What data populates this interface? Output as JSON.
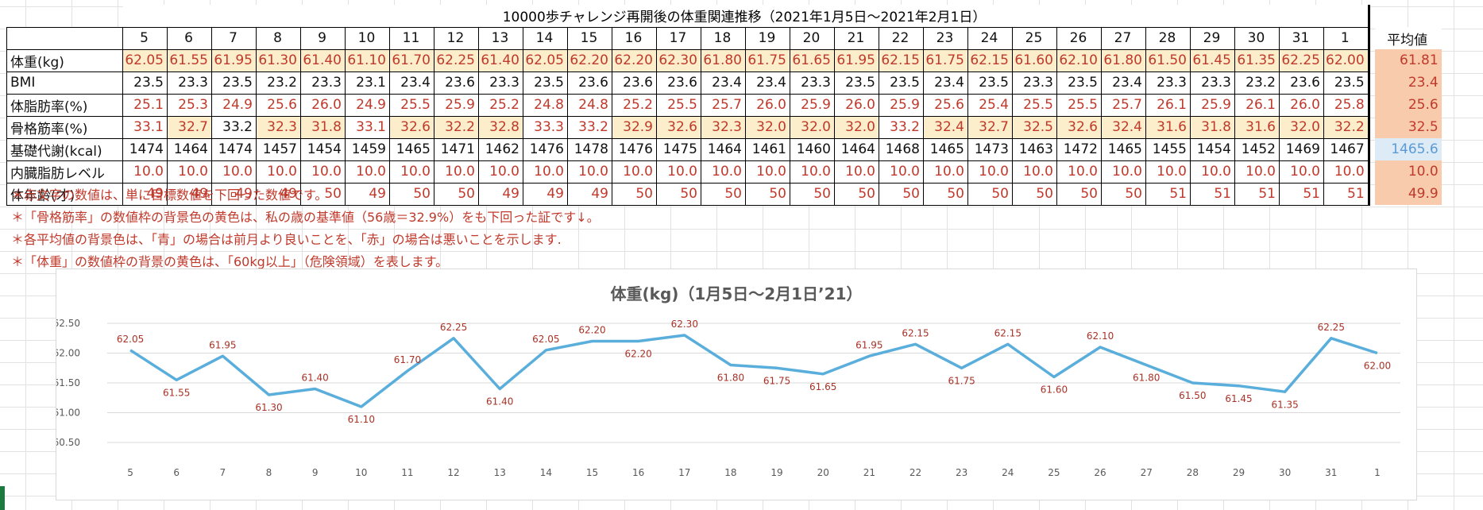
{
  "table": {
    "title": "10000歩チャレンジ再開後の体重関連推移（2021年1月5日～2021年2月1日）",
    "days": [
      "5",
      "6",
      "7",
      "8",
      "9",
      "10",
      "11",
      "12",
      "13",
      "14",
      "15",
      "16",
      "17",
      "18",
      "19",
      "20",
      "21",
      "22",
      "23",
      "24",
      "25",
      "26",
      "27",
      "28",
      "29",
      "30",
      "31",
      "1"
    ],
    "average_header": "平均値",
    "rows": [
      {
        "label": "体重(kg)",
        "values": [
          "62.05",
          "61.55",
          "61.95",
          "61.30",
          "61.40",
          "61.10",
          "61.70",
          "62.25",
          "61.40",
          "62.05",
          "62.20",
          "62.20",
          "62.30",
          "61.80",
          "61.75",
          "61.65",
          "61.95",
          "62.15",
          "61.75",
          "62.15",
          "61.60",
          "62.10",
          "61.80",
          "61.50",
          "61.45",
          "61.35",
          "62.25",
          "62.00"
        ],
        "red": [
          1,
          1,
          1,
          1,
          1,
          1,
          1,
          1,
          1,
          1,
          1,
          1,
          1,
          1,
          1,
          1,
          1,
          1,
          1,
          1,
          1,
          1,
          1,
          1,
          1,
          1,
          1,
          1
        ],
        "yellow": [
          1,
          1,
          1,
          1,
          1,
          1,
          1,
          1,
          1,
          1,
          1,
          1,
          1,
          1,
          1,
          1,
          1,
          1,
          1,
          1,
          1,
          1,
          1,
          1,
          1,
          1,
          1,
          1
        ],
        "average": "61.81",
        "average_color": "red"
      },
      {
        "label": "BMI",
        "values": [
          "23.5",
          "23.3",
          "23.5",
          "23.2",
          "23.3",
          "23.1",
          "23.4",
          "23.6",
          "23.3",
          "23.5",
          "23.6",
          "23.6",
          "23.6",
          "23.4",
          "23.4",
          "23.3",
          "23.5",
          "23.5",
          "23.4",
          "23.5",
          "23.3",
          "23.5",
          "23.4",
          "23.3",
          "23.3",
          "23.2",
          "23.6",
          "23.5"
        ],
        "red": [
          0,
          0,
          0,
          0,
          0,
          0,
          0,
          0,
          0,
          0,
          0,
          0,
          0,
          0,
          0,
          0,
          0,
          0,
          0,
          0,
          0,
          0,
          0,
          0,
          0,
          0,
          0,
          0
        ],
        "yellow": [
          0,
          0,
          0,
          0,
          0,
          0,
          0,
          0,
          0,
          0,
          0,
          0,
          0,
          0,
          0,
          0,
          0,
          0,
          0,
          0,
          0,
          0,
          0,
          0,
          0,
          0,
          0,
          0
        ],
        "average": "23.4",
        "average_color": "red"
      },
      {
        "label": "体脂肪率(%)",
        "values": [
          "25.1",
          "25.3",
          "24.9",
          "25.6",
          "26.0",
          "24.9",
          "25.5",
          "25.9",
          "25.2",
          "24.8",
          "24.8",
          "25.2",
          "25.5",
          "25.7",
          "26.0",
          "25.9",
          "26.0",
          "25.9",
          "25.6",
          "25.4",
          "25.5",
          "25.5",
          "25.7",
          "26.1",
          "25.9",
          "26.1",
          "26.0",
          "25.8"
        ],
        "red": [
          1,
          1,
          1,
          1,
          1,
          1,
          1,
          1,
          1,
          1,
          1,
          1,
          1,
          1,
          1,
          1,
          1,
          1,
          1,
          1,
          1,
          1,
          1,
          1,
          1,
          1,
          1,
          1
        ],
        "yellow": [
          0,
          0,
          0,
          0,
          0,
          0,
          0,
          0,
          0,
          0,
          0,
          0,
          0,
          0,
          0,
          0,
          0,
          0,
          0,
          0,
          0,
          0,
          0,
          0,
          0,
          0,
          0,
          0
        ],
        "average": "25.6",
        "average_color": "red"
      },
      {
        "label": "骨格筋率(%)",
        "values": [
          "33.1",
          "32.7",
          "33.2",
          "32.3",
          "31.8",
          "33.1",
          "32.6",
          "32.2",
          "32.8",
          "33.3",
          "33.2",
          "32.9",
          "32.6",
          "32.3",
          "32.0",
          "32.0",
          "32.0",
          "33.2",
          "32.4",
          "32.7",
          "32.5",
          "32.6",
          "32.4",
          "31.6",
          "31.8",
          "31.6",
          "32.0",
          "32.2"
        ],
        "red": [
          1,
          1,
          0,
          1,
          1,
          1,
          1,
          1,
          1,
          1,
          1,
          1,
          1,
          1,
          1,
          1,
          1,
          1,
          1,
          1,
          1,
          1,
          1,
          1,
          1,
          1,
          1,
          1
        ],
        "yellow": [
          0,
          1,
          0,
          1,
          1,
          0,
          1,
          1,
          1,
          0,
          0,
          1,
          1,
          1,
          1,
          1,
          1,
          0,
          1,
          1,
          1,
          1,
          1,
          1,
          1,
          1,
          1,
          1
        ],
        "average": "32.5",
        "average_color": "red"
      },
      {
        "label": "基礎代謝(kcal)",
        "values": [
          "1474",
          "1464",
          "1474",
          "1457",
          "1454",
          "1459",
          "1465",
          "1471",
          "1462",
          "1476",
          "1478",
          "1476",
          "1475",
          "1464",
          "1461",
          "1460",
          "1464",
          "1468",
          "1465",
          "1473",
          "1463",
          "1472",
          "1465",
          "1455",
          "1454",
          "1452",
          "1469",
          "1467"
        ],
        "red": [
          0,
          0,
          0,
          0,
          0,
          0,
          0,
          0,
          0,
          0,
          0,
          0,
          0,
          0,
          0,
          0,
          0,
          0,
          0,
          0,
          0,
          0,
          0,
          0,
          0,
          0,
          0,
          0
        ],
        "yellow": [
          0,
          0,
          0,
          0,
          0,
          0,
          0,
          0,
          0,
          0,
          0,
          0,
          0,
          0,
          0,
          0,
          0,
          0,
          0,
          0,
          0,
          0,
          0,
          0,
          0,
          0,
          0,
          0
        ],
        "average": "1465.6",
        "average_color": "blue"
      },
      {
        "label": "内臓脂肪レベル",
        "values": [
          "10.0",
          "10.0",
          "10.0",
          "10.0",
          "10.0",
          "10.0",
          "10.0",
          "10.0",
          "10.0",
          "10.0",
          "10.0",
          "10.0",
          "10.0",
          "10.0",
          "10.0",
          "10.0",
          "10.0",
          "10.0",
          "10.0",
          "10.0",
          "10.0",
          "10.0",
          "10.0",
          "10.0",
          "10.0",
          "10.0",
          "10.0",
          "10.0"
        ],
        "red": [
          1,
          1,
          1,
          1,
          1,
          1,
          1,
          1,
          1,
          1,
          1,
          1,
          1,
          1,
          1,
          1,
          1,
          1,
          1,
          1,
          1,
          1,
          1,
          1,
          1,
          1,
          1,
          1
        ],
        "yellow": [
          0,
          0,
          0,
          0,
          0,
          0,
          0,
          0,
          0,
          0,
          0,
          0,
          0,
          0,
          0,
          0,
          0,
          0,
          0,
          0,
          0,
          0,
          0,
          0,
          0,
          0,
          0,
          0
        ],
        "average": "10.0",
        "average_color": "red"
      },
      {
        "label": "体年齢(才)",
        "values": [
          "49",
          "49",
          "49",
          "49",
          "50",
          "49",
          "50",
          "50",
          "49",
          "49",
          "49",
          "50",
          "50",
          "50",
          "50",
          "50",
          "50",
          "50",
          "50",
          "50",
          "50",
          "50",
          "50",
          "51",
          "51",
          "51",
          "51",
          "51"
        ],
        "red": [
          1,
          1,
          1,
          1,
          1,
          1,
          1,
          1,
          1,
          1,
          1,
          1,
          1,
          1,
          1,
          1,
          1,
          1,
          1,
          1,
          1,
          1,
          1,
          1,
          1,
          1,
          1,
          1
        ],
        "yellow": [
          0,
          0,
          0,
          0,
          0,
          0,
          0,
          0,
          0,
          0,
          0,
          0,
          0,
          0,
          0,
          0,
          0,
          0,
          0,
          0,
          0,
          0,
          0,
          0,
          0,
          0,
          0,
          0
        ],
        "average": "49.9",
        "average_color": "red"
      }
    ]
  },
  "notes": [
    "＊赤文字の数値は、単に目標数値を下回った数値です。",
    "＊「骨格筋率」の数値枠の背景色の黄色は、私の歳の基準値（56歳＝32.9%）をも下回った証です↓。",
    "＊各平均値の背景色は、「青」の場合は前月より良いことを、「赤」の場合は悪いことを示します.",
    "＊「体重」の数値枠の背景の黄色は、「60kg以上」（危険領域）を表します。"
  ],
  "colors": {
    "red_text": "#c0392b",
    "yellow_bg": "#fdeecb",
    "avg_red_bg": "#f8cbad",
    "avg_blue_bg": "#ddebf7",
    "line": "#5aaedb"
  },
  "chart_data": {
    "type": "line",
    "title": "体重(kg)（1月5日～2月1日’21）",
    "categories": [
      "5",
      "6",
      "7",
      "8",
      "9",
      "10",
      "11",
      "12",
      "13",
      "14",
      "15",
      "16",
      "17",
      "18",
      "19",
      "20",
      "21",
      "22",
      "23",
      "24",
      "25",
      "26",
      "27",
      "28",
      "29",
      "30",
      "31",
      "1"
    ],
    "values": [
      62.05,
      61.55,
      61.95,
      61.3,
      61.4,
      61.1,
      61.7,
      62.25,
      61.4,
      62.05,
      62.2,
      62.2,
      62.3,
      61.8,
      61.75,
      61.65,
      61.95,
      62.15,
      61.75,
      62.15,
      61.6,
      62.1,
      61.8,
      61.5,
      61.45,
      61.35,
      62.25,
      62.0
    ],
    "data_labels": [
      "62.05",
      "61.55",
      "61.95",
      "61.30",
      "61.40",
      "61.10",
      "61.70",
      "62.25",
      "61.40",
      "62.05",
      "62.20",
      "62.20",
      "62.30",
      "61.80",
      "61.75",
      "61.65",
      "61.95",
      "62.15",
      "61.75",
      "62.15",
      "61.60",
      "62.10",
      "61.80",
      "61.50",
      "61.45",
      "61.35",
      "62.25",
      "62.00"
    ],
    "yticks": [
      "62.50",
      "62.00",
      "61.50",
      "61.00",
      "60.50"
    ],
    "ylim": [
      60.5,
      62.5
    ],
    "grid": true,
    "xlabel": "",
    "ylabel": ""
  }
}
